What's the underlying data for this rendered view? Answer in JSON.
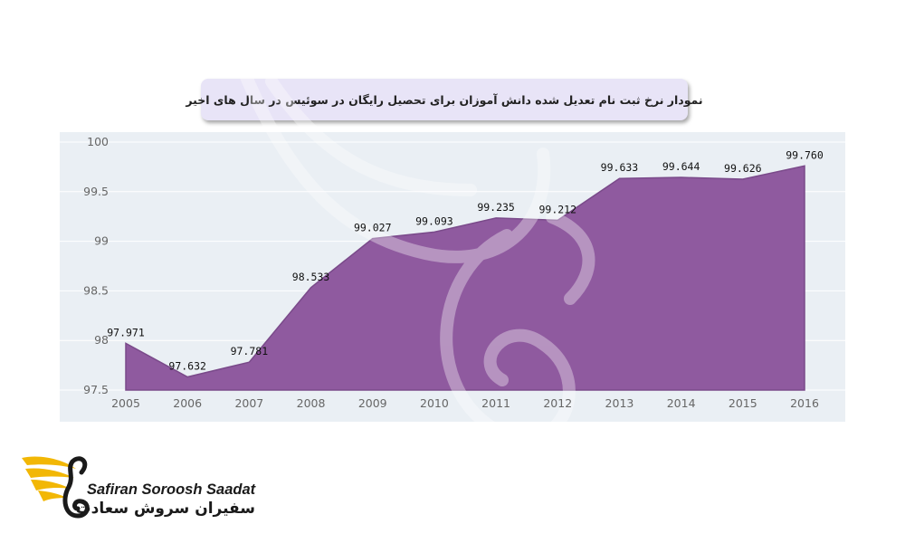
{
  "title": "نمودار نرخ ثبت نام تعدیل شده دانش آموزان برای تحصیل رایگان در سوئیس در سال های اخیر",
  "colors": {
    "plot_background": "#eaeff4",
    "area_fill": "#8f5a9f",
    "area_line": "#7a4a8a",
    "grid": "#ffffff",
    "title_box": "#e8e4f7"
  },
  "chart_data": {
    "type": "area",
    "x": [
      "2005",
      "2006",
      "2007",
      "2008",
      "2009",
      "2010",
      "2011",
      "2012",
      "2013",
      "2014",
      "2015",
      "2016"
    ],
    "values": [
      97.971,
      97.632,
      97.781,
      98.533,
      99.027,
      99.093,
      99.235,
      99.212,
      99.633,
      99.644,
      99.626,
      99.76
    ],
    "data_labels": [
      "97.971",
      "97.632",
      "97.781",
      "98.533",
      "99.027",
      "99.093",
      "99.235",
      "99.212",
      "99.633",
      "99.644",
      "99.626",
      "99.760"
    ],
    "y_ticks": [
      "97.5",
      "98",
      "98.5",
      "99",
      "99.5",
      "100"
    ],
    "y_tick_values": [
      97.5,
      98,
      98.5,
      99,
      99.5,
      100
    ],
    "ylim": [
      97.5,
      100
    ],
    "grid": true,
    "legend": false
  },
  "logo": {
    "brand_en": "Safiran Soroosh Saadat",
    "brand_fa": "سفیران سروش سعادت"
  }
}
